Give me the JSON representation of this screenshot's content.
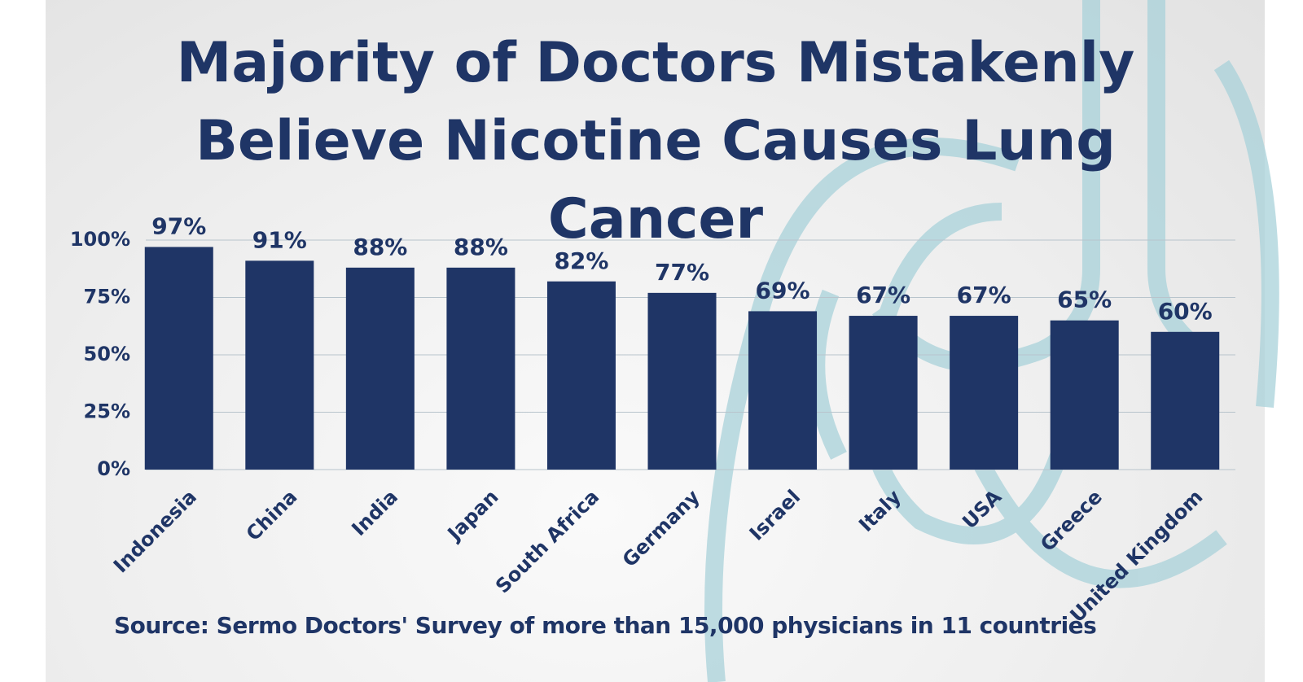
{
  "chart_data": {
    "type": "bar",
    "title": "Majority of Doctors Mistakenly Believe Nicotine Causes Lung Cancer",
    "source": "Source: Sermo Doctors' Survey of more than 15,000 physicians in 11 countries",
    "categories": [
      "Indonesia",
      "China",
      "India",
      "Japan",
      "South Africa",
      "Germany",
      "Israel",
      "Italy",
      "USA",
      "Greece",
      "United Kingdom"
    ],
    "values": [
      97,
      91,
      88,
      88,
      82,
      77,
      69,
      67,
      67,
      65,
      60
    ],
    "value_labels": [
      "97%",
      "91%",
      "88%",
      "88%",
      "82%",
      "77%",
      "69%",
      "67%",
      "67%",
      "65%",
      "60%"
    ],
    "color": "#1f3566",
    "ylim": [
      0,
      100
    ],
    "yticks": [
      {
        "value": 0,
        "label": "0%"
      },
      {
        "value": 25,
        "label": "25%"
      },
      {
        "value": 50,
        "label": "50%"
      },
      {
        "value": 75,
        "label": "75%"
      },
      {
        "value": 100,
        "label": "100%"
      }
    ],
    "grid": true
  }
}
